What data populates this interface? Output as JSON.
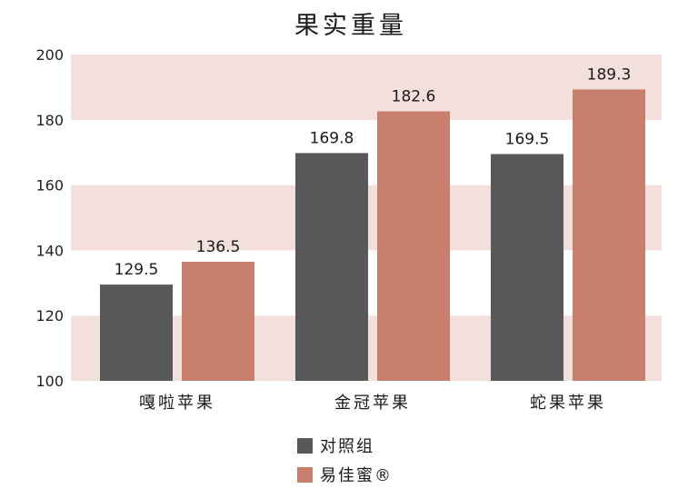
{
  "chart_data": {
    "type": "bar",
    "title": "果实重量",
    "xlabel": "",
    "ylabel": "",
    "ylim": [
      100,
      200
    ],
    "yticks": [
      "100",
      "120",
      "140",
      "160",
      "180",
      "200"
    ],
    "categories": [
      "嘎啦苹果",
      "金冠苹果",
      "蛇果苹果"
    ],
    "series": [
      {
        "name": "对照组",
        "color": "#58585a",
        "values": [
          129.5,
          169.8,
          169.5
        ],
        "labels": [
          "129.5",
          "169.8",
          "169.5"
        ]
      },
      {
        "name": "易佳蜜®",
        "color": "#c97f6d",
        "values": [
          136.5,
          182.6,
          189.3
        ],
        "labels": [
          "136.5",
          "182.6",
          "189.3"
        ]
      }
    ],
    "band_color": "#f3dfdb",
    "grid": false,
    "legend_position": "bottom"
  }
}
